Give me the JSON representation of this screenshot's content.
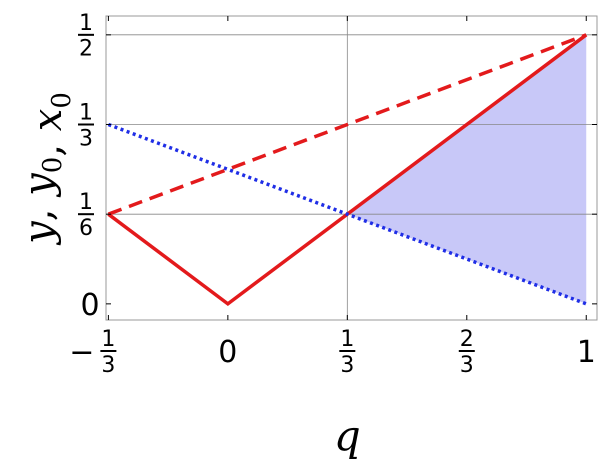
{
  "chart_data": {
    "type": "line",
    "xlabel": "q",
    "ylabel": "y, y0, x0",
    "xlim": [
      -0.34,
      1.03
    ],
    "ylim": [
      -0.03,
      0.535
    ],
    "grid": {
      "x": [
        0.3333333333
      ],
      "y": [
        0.1666666667,
        0.3333333333,
        0.5
      ]
    },
    "x_ticks": [
      {
        "value": -0.3333333333,
        "sign": "−",
        "num": "1",
        "den": "3"
      },
      {
        "value": 0,
        "label": "0"
      },
      {
        "value": 0.3333333333,
        "num": "1",
        "den": "3"
      },
      {
        "value": 0.6666666667,
        "num": "2",
        "den": "3"
      },
      {
        "value": 1,
        "label": "1"
      }
    ],
    "y_ticks": [
      {
        "value": 0,
        "label": "0"
      },
      {
        "value": 0.1666666667,
        "num": "1",
        "den": "6"
      },
      {
        "value": 0.3333333333,
        "num": "1",
        "den": "3"
      },
      {
        "value": 0.5,
        "num": "1",
        "den": "2"
      }
    ],
    "series": [
      {
        "style": "solid",
        "color": "#e31a1c",
        "x": [
          -0.3333333333,
          0,
          1
        ],
        "y": [
          0.1666666667,
          0,
          0.5
        ]
      },
      {
        "style": "dashed",
        "color": "#e31a1c",
        "x": [
          -0.3333333333,
          1
        ],
        "y": [
          0.1666666667,
          0.5
        ]
      },
      {
        "style": "dotted",
        "color": "#1f2ee6",
        "x": [
          -0.3333333333,
          1
        ],
        "y": [
          0.3333333333,
          0
        ]
      }
    ],
    "shaded_region": {
      "color": "#c8c8f8",
      "x": [
        0.3333333333,
        1,
        1
      ],
      "y": [
        0.1666666667,
        0.5,
        0
      ]
    }
  }
}
